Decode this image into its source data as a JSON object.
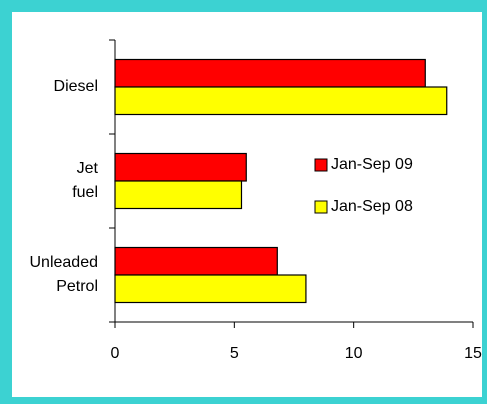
{
  "chart_data": {
    "type": "bar",
    "orientation": "horizontal",
    "categories": [
      "Diesel",
      "Jet fuel",
      "Unleaded Petrol"
    ],
    "series": [
      {
        "name": "Jan-Sep 09",
        "color": "#ff0000",
        "values": [
          13.0,
          5.5,
          6.8
        ]
      },
      {
        "name": "Jan-Sep 08",
        "color": "#ffff00",
        "values": [
          13.9,
          5.3,
          8.0
        ]
      }
    ],
    "xlim": [
      0,
      15
    ],
    "xticks": [
      0,
      5,
      10,
      15
    ],
    "grid": false,
    "legend": "right"
  }
}
